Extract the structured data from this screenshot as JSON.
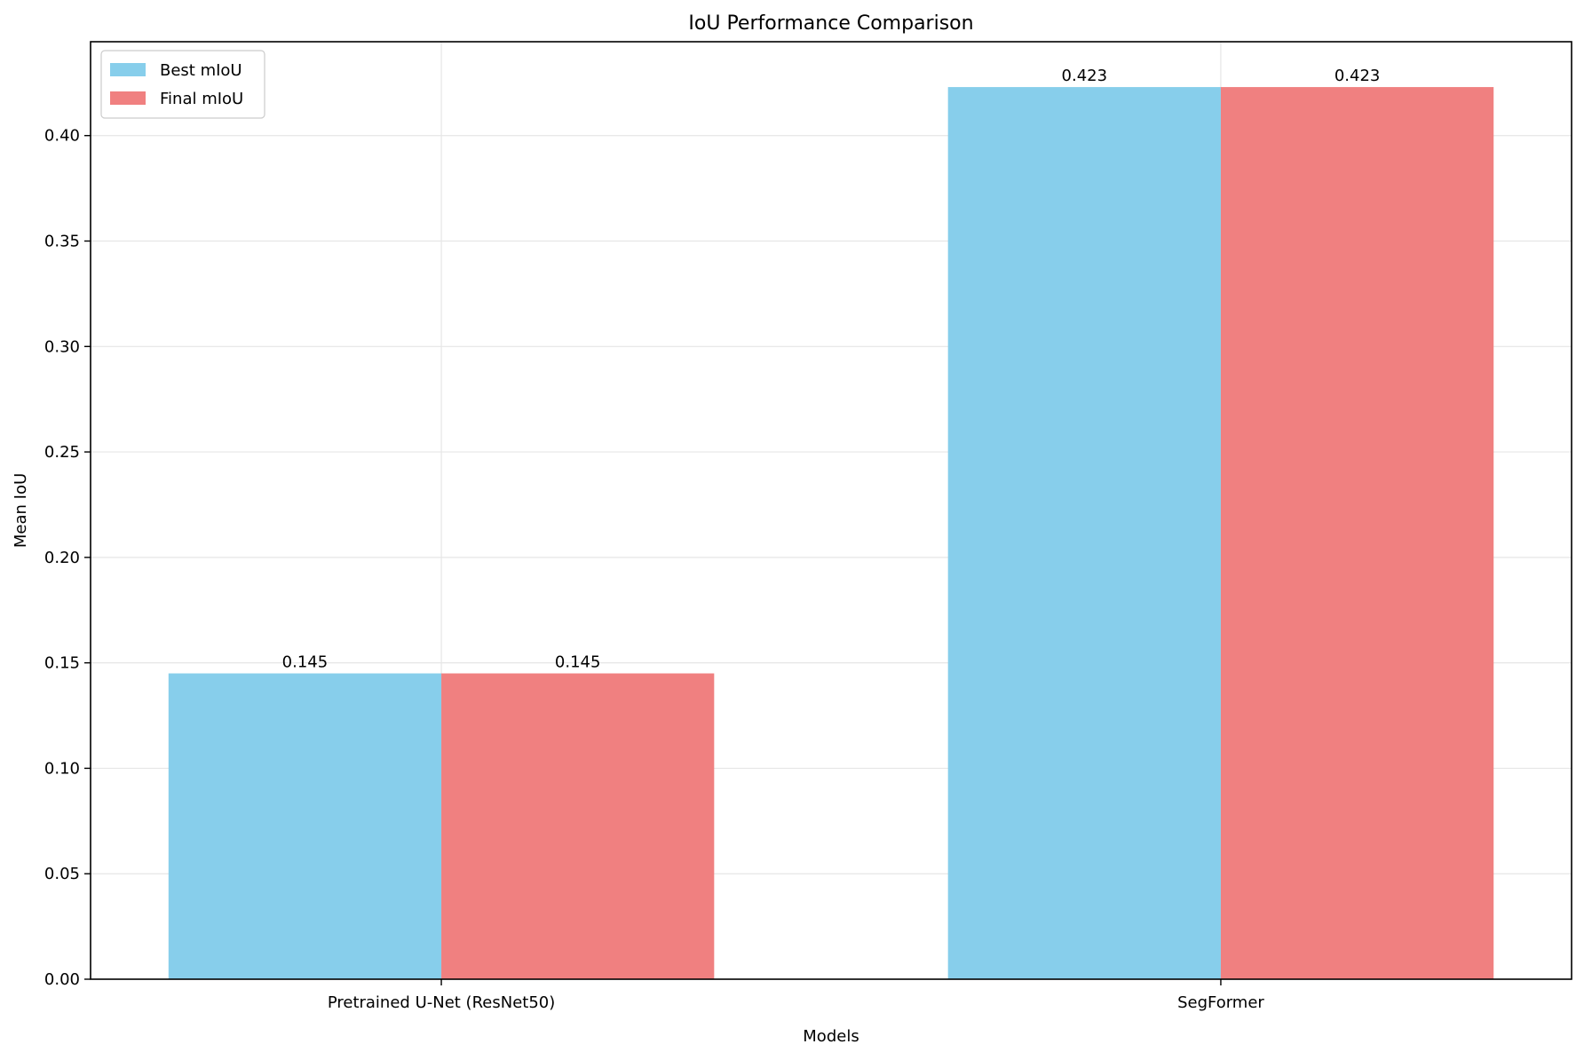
{
  "chart_data": {
    "type": "bar",
    "title": "IoU Performance Comparison",
    "xlabel": "Models",
    "ylabel": "Mean IoU",
    "categories": [
      "Pretrained U-Net (ResNet50)",
      "SegFormer"
    ],
    "series": [
      {
        "name": "Best mIoU",
        "values": [
          0.145,
          0.423
        ],
        "color": "#87CEEB"
      },
      {
        "name": "Final mIoU",
        "values": [
          0.145,
          0.423
        ],
        "color": "#F08080"
      }
    ],
    "value_labels": [
      [
        "0.145",
        "0.423"
      ],
      [
        "0.145",
        "0.423"
      ]
    ],
    "ylim": [
      0,
      0.4445
    ],
    "yticks": [
      0.0,
      0.05,
      0.1,
      0.15,
      0.2,
      0.25,
      0.3,
      0.35,
      0.4
    ],
    "ytick_labels": [
      "0.00",
      "0.05",
      "0.10",
      "0.15",
      "0.20",
      "0.25",
      "0.30",
      "0.35",
      "0.40"
    ],
    "grid": true,
    "legend_position": "upper-left"
  }
}
